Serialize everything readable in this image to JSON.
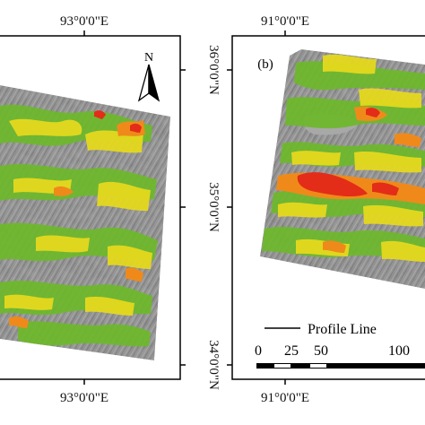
{
  "left_panel": {
    "top_longitude": "93°0'0\"E",
    "bottom_longitude": "93°0'0\"E",
    "north_arrow": "N"
  },
  "right_panel": {
    "panel_label": "(b)",
    "top_longitude": "91°0'0\"E",
    "bottom_longitude": "91°0'0\"E",
    "latitudes": [
      "36°0'0\"N",
      "35°0'0\"N",
      "34°0'0\"N"
    ],
    "legend": {
      "profile_line_label": "Profile Line",
      "scale_ticks": [
        "0",
        "25",
        "50",
        "100"
      ]
    }
  },
  "colors": {
    "terrain_base": "#8d8d8d",
    "low": "#6db92b",
    "medium": "#e5d91e",
    "high": "#ef8a1a",
    "very_high": "#e32d18"
  }
}
